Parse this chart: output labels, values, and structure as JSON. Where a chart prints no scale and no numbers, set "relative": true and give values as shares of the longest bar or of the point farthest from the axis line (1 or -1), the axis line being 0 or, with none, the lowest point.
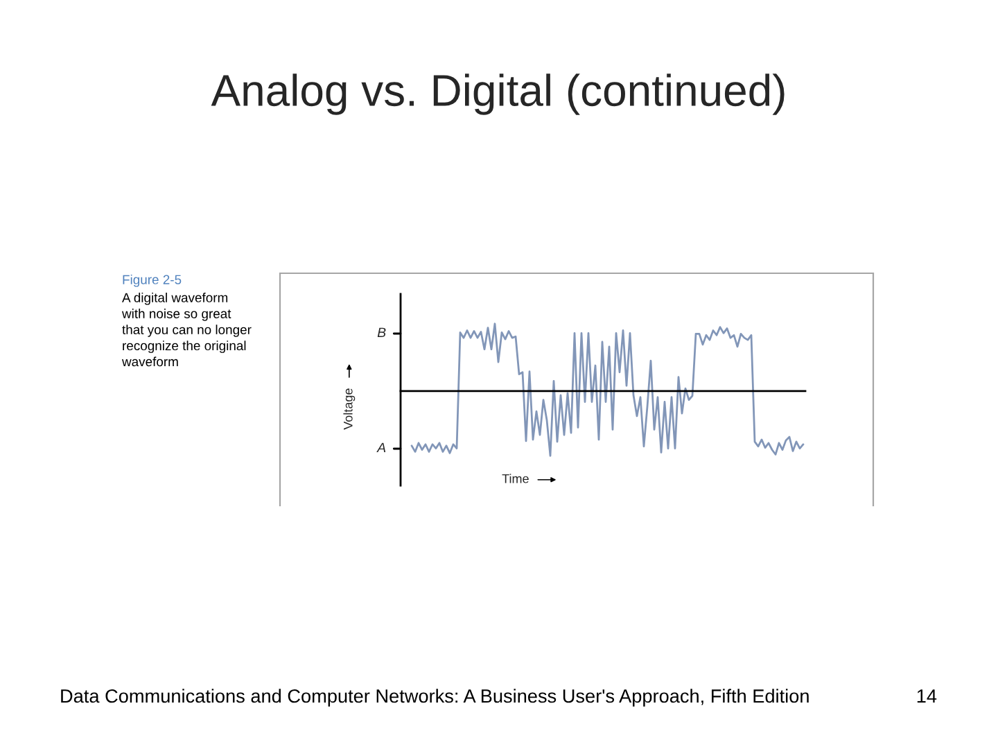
{
  "chart_data": {
    "type": "line",
    "title": "Analog vs. Digital (continued)",
    "xlabel": "Time",
    "ylabel": "Voltage",
    "relative": true,
    "categories": [
      null,
      null,
      null,
      null,
      null,
      null,
      null,
      null,
      null,
      null,
      null,
      null,
      null,
      null,
      null,
      null,
      null,
      null,
      null,
      null,
      null,
      null,
      null,
      null,
      null,
      null,
      null,
      null,
      null,
      null,
      null,
      null,
      null,
      null,
      null,
      null,
      null,
      null,
      null,
      null,
      null,
      null,
      null,
      null,
      null,
      null,
      null,
      null,
      null,
      null,
      null,
      null,
      null,
      null,
      null,
      null,
      null,
      null,
      null,
      null,
      null,
      null,
      null,
      null,
      null,
      null,
      null,
      null,
      null,
      null,
      null,
      null,
      null,
      null,
      null,
      null,
      null,
      null,
      null,
      null,
      null,
      null,
      null,
      null,
      null,
      null,
      null,
      null,
      null,
      null,
      null,
      null,
      null,
      null,
      null,
      null,
      null,
      null,
      null,
      null,
      null,
      null,
      null,
      null,
      null,
      null,
      null,
      null,
      null,
      null,
      null,
      null,
      null,
      null
    ],
    "series": [
      {
        "color": "#8296b8",
        "values": [
          -0.81,
          -0.9,
          -0.77,
          -0.87,
          -0.79,
          -0.9,
          -0.79,
          -0.85,
          -0.77,
          -0.9,
          -0.81,
          -0.92,
          -0.79,
          -0.85,
          0.87,
          0.79,
          0.9,
          0.79,
          0.89,
          0.79,
          0.88,
          0.62,
          0.94,
          0.62,
          1.0,
          0.43,
          0.87,
          0.77,
          0.89,
          0.79,
          0.81,
          0.25,
          0.28,
          -0.74,
          0.29,
          -0.72,
          -0.3,
          -0.65,
          -0.13,
          -0.43,
          -0.96,
          0.15,
          -0.75,
          -0.06,
          -0.65,
          -0.03,
          -0.62,
          0.86,
          -0.54,
          0.86,
          -0.16,
          0.86,
          -0.16,
          0.38,
          -0.72,
          0.73,
          -0.16,
          0.66,
          -0.57,
          0.86,
          0.28,
          0.9,
          0.08,
          0.86,
          -0.06,
          -0.37,
          -0.09,
          -0.82,
          -0.23,
          0.45,
          -0.57,
          -0.09,
          -0.91,
          -0.16,
          -0.85,
          -0.09,
          -0.85,
          0.21,
          -0.33,
          0.04,
          -0.13,
          -0.07,
          0.85,
          0.85,
          0.69,
          0.83,
          0.76,
          0.9,
          0.83,
          0.95,
          0.86,
          0.93,
          0.79,
          0.83,
          0.66,
          0.85,
          0.79,
          0.76,
          0.83,
          -0.75,
          -0.82,
          -0.72,
          -0.84,
          -0.77,
          -0.87,
          -0.94,
          -0.77,
          -0.87,
          -0.73,
          -0.68,
          -0.89,
          -0.75,
          -0.85,
          -0.79
        ]
      }
    ],
    "annotations": [
      "Figure 2-5",
      "A digital waveform\nwith noise so great\nthat you can no longer\nrecognize the original\nwaveform",
      "B",
      "A",
      "Data Communications and Computer Networks: A Business User's Approach, Fifth Edition",
      "14"
    ]
  }
}
